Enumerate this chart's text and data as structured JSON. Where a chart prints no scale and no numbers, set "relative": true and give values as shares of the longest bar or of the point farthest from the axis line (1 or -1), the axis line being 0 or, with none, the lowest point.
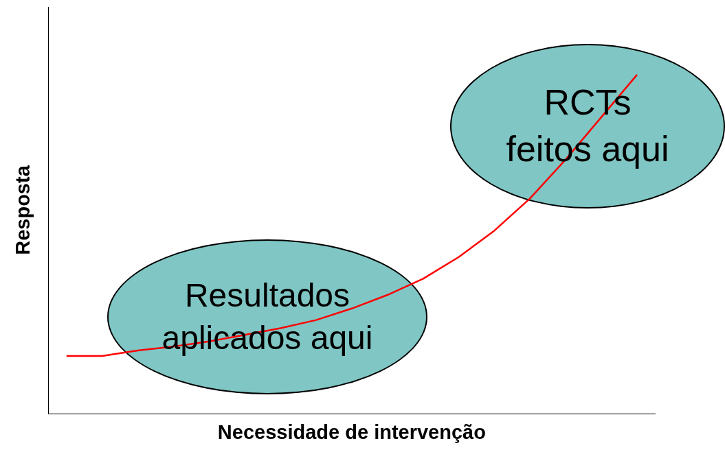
{
  "chart_data": {
    "type": "line",
    "relative": true,
    "xlabel": "Necessidade de intervenção",
    "ylabel": "Resposta",
    "categories": [
      null,
      null,
      null,
      null,
      null,
      null,
      null,
      null,
      null,
      null,
      null,
      null,
      null,
      null,
      null,
      null,
      null
    ],
    "series": [
      {
        "color": "#ff0000",
        "values": [
          0.17,
          0.17,
          0.186,
          0.198,
          0.213,
          0.232,
          0.252,
          0.276,
          0.31,
          0.35,
          0.398,
          0.462,
          0.54,
          0.635,
          0.75,
          0.875,
          1.0
        ]
      }
    ],
    "marker": "none",
    "line_style": "solid",
    "annotations": [
      "Resultados\naplicados aqui",
      "RCTs\nfeitos aqui"
    ]
  }
}
